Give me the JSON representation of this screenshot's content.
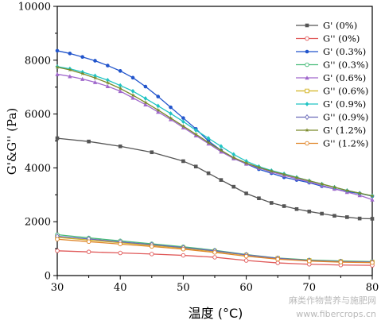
{
  "chart_data": {
    "type": "line",
    "xlabel": "温度 (°C)",
    "ylabel": "G'&G'' (Pa)",
    "xlim": [
      30,
      80
    ],
    "ylim": [
      0,
      10000
    ],
    "xticks": [
      30,
      40,
      50,
      60,
      70,
      80
    ],
    "yticks": [
      0,
      2000,
      4000,
      6000,
      8000,
      10000
    ],
    "legend_position": "top-right",
    "grid": false,
    "series": [
      {
        "name": "G' (0%)",
        "color": "#555555",
        "marker": "square",
        "x": [
          30,
          35,
          40,
          45,
          50,
          52,
          54,
          56,
          58,
          60,
          62,
          64,
          66,
          68,
          70,
          72,
          74,
          76,
          78,
          80
        ],
        "y": [
          5100,
          4980,
          4800,
          4580,
          4250,
          4050,
          3800,
          3550,
          3300,
          3050,
          2870,
          2700,
          2580,
          2470,
          2380,
          2300,
          2220,
          2170,
          2120,
          2110
        ]
      },
      {
        "name": "G'' (0%)",
        "color": "#e05a5a",
        "marker": "open-circle",
        "x": [
          30,
          35,
          40,
          45,
          50,
          55,
          60,
          65,
          70,
          75,
          80
        ],
        "y": [
          920,
          880,
          840,
          800,
          750,
          680,
          560,
          470,
          420,
          390,
          380
        ]
      },
      {
        "name": "G' (0.3%)",
        "color": "#2255cc",
        "marker": "circle",
        "x": [
          30,
          32,
          34,
          36,
          38,
          40,
          42,
          44,
          46,
          48,
          50,
          52,
          54,
          56,
          58,
          60,
          62,
          64,
          66,
          68,
          70,
          72,
          74,
          76,
          78,
          80
        ],
        "y": [
          8350,
          8250,
          8120,
          7980,
          7800,
          7600,
          7350,
          7020,
          6650,
          6250,
          5850,
          5450,
          5000,
          4650,
          4350,
          4150,
          3950,
          3800,
          3650,
          3550,
          3450,
          3320,
          3220,
          3120,
          3050,
          2950
        ]
      },
      {
        "name": "G'' (0.3%)",
        "color": "#44bb77",
        "marker": "open-circle",
        "x": [
          30,
          35,
          40,
          45,
          50,
          55,
          60,
          65,
          70,
          75,
          80
        ],
        "y": [
          1520,
          1400,
          1290,
          1180,
          1070,
          940,
          780,
          650,
          580,
          540,
          520
        ]
      },
      {
        "name": "G' (0.6%)",
        "color": "#a068cc",
        "marker": "triangle",
        "x": [
          30,
          32,
          34,
          36,
          38,
          40,
          42,
          44,
          46,
          48,
          50,
          52,
          54,
          56,
          58,
          60,
          62,
          64,
          66,
          68,
          70,
          72,
          74,
          76,
          78,
          80
        ],
        "y": [
          7480,
          7400,
          7300,
          7180,
          7030,
          6850,
          6600,
          6350,
          6080,
          5800,
          5500,
          5200,
          4900,
          4600,
          4350,
          4150,
          4000,
          3850,
          3720,
          3600,
          3480,
          3350,
          3220,
          3100,
          2980,
          2820
        ]
      },
      {
        "name": "G'' (0.6%)",
        "color": "#d2b21f",
        "marker": "open-square",
        "x": [
          30,
          35,
          40,
          45,
          50,
          55,
          60,
          65,
          70,
          75,
          80
        ],
        "y": [
          1420,
          1320,
          1220,
          1120,
          1020,
          900,
          760,
          640,
          560,
          520,
          500
        ]
      },
      {
        "name": "G' (0.9%)",
        "color": "#20c4c4",
        "marker": "diamond",
        "x": [
          30,
          32,
          34,
          36,
          38,
          40,
          42,
          44,
          46,
          48,
          50,
          52,
          54,
          56,
          58,
          60,
          62,
          64,
          66,
          68,
          70,
          72,
          74,
          76,
          78,
          80
        ],
        "y": [
          7760,
          7680,
          7560,
          7420,
          7260,
          7060,
          6850,
          6580,
          6300,
          6020,
          5720,
          5400,
          5100,
          4800,
          4500,
          4250,
          4050,
          3900,
          3780,
          3650,
          3520,
          3400,
          3280,
          3160,
          3060,
          2960
        ]
      },
      {
        "name": "G'' (0.9%)",
        "color": "#6a6ab8",
        "marker": "open-diamond",
        "x": [
          30,
          35,
          40,
          45,
          50,
          55,
          60,
          65,
          70,
          75,
          80
        ],
        "y": [
          1460,
          1360,
          1250,
          1150,
          1040,
          920,
          770,
          640,
          560,
          520,
          500
        ]
      },
      {
        "name": "G' (1.2%)",
        "color": "#7a8a2a",
        "marker": "star",
        "x": [
          30,
          32,
          34,
          36,
          38,
          40,
          42,
          44,
          46,
          48,
          50,
          52,
          54,
          56,
          58,
          60,
          62,
          64,
          66,
          68,
          70,
          72,
          74,
          76,
          78,
          80
        ],
        "y": [
          7740,
          7640,
          7500,
          7340,
          7160,
          6950,
          6700,
          6430,
          6150,
          5850,
          5550,
          5250,
          4940,
          4650,
          4380,
          4180,
          4020,
          3880,
          3760,
          3640,
          3520,
          3400,
          3280,
          3160,
          3060,
          2960
        ]
      },
      {
        "name": "G'' (1.2%)",
        "color": "#e0862a",
        "marker": "open-circle",
        "x": [
          30,
          35,
          40,
          45,
          50,
          55,
          60,
          65,
          70,
          75,
          80
        ],
        "y": [
          1350,
          1260,
          1170,
          1080,
          980,
          860,
          720,
          610,
          540,
          500,
          480
        ]
      }
    ]
  },
  "watermark": {
    "line1": "麻类作物营养与施肥网",
    "line2": "www.fibercrops.cn"
  }
}
